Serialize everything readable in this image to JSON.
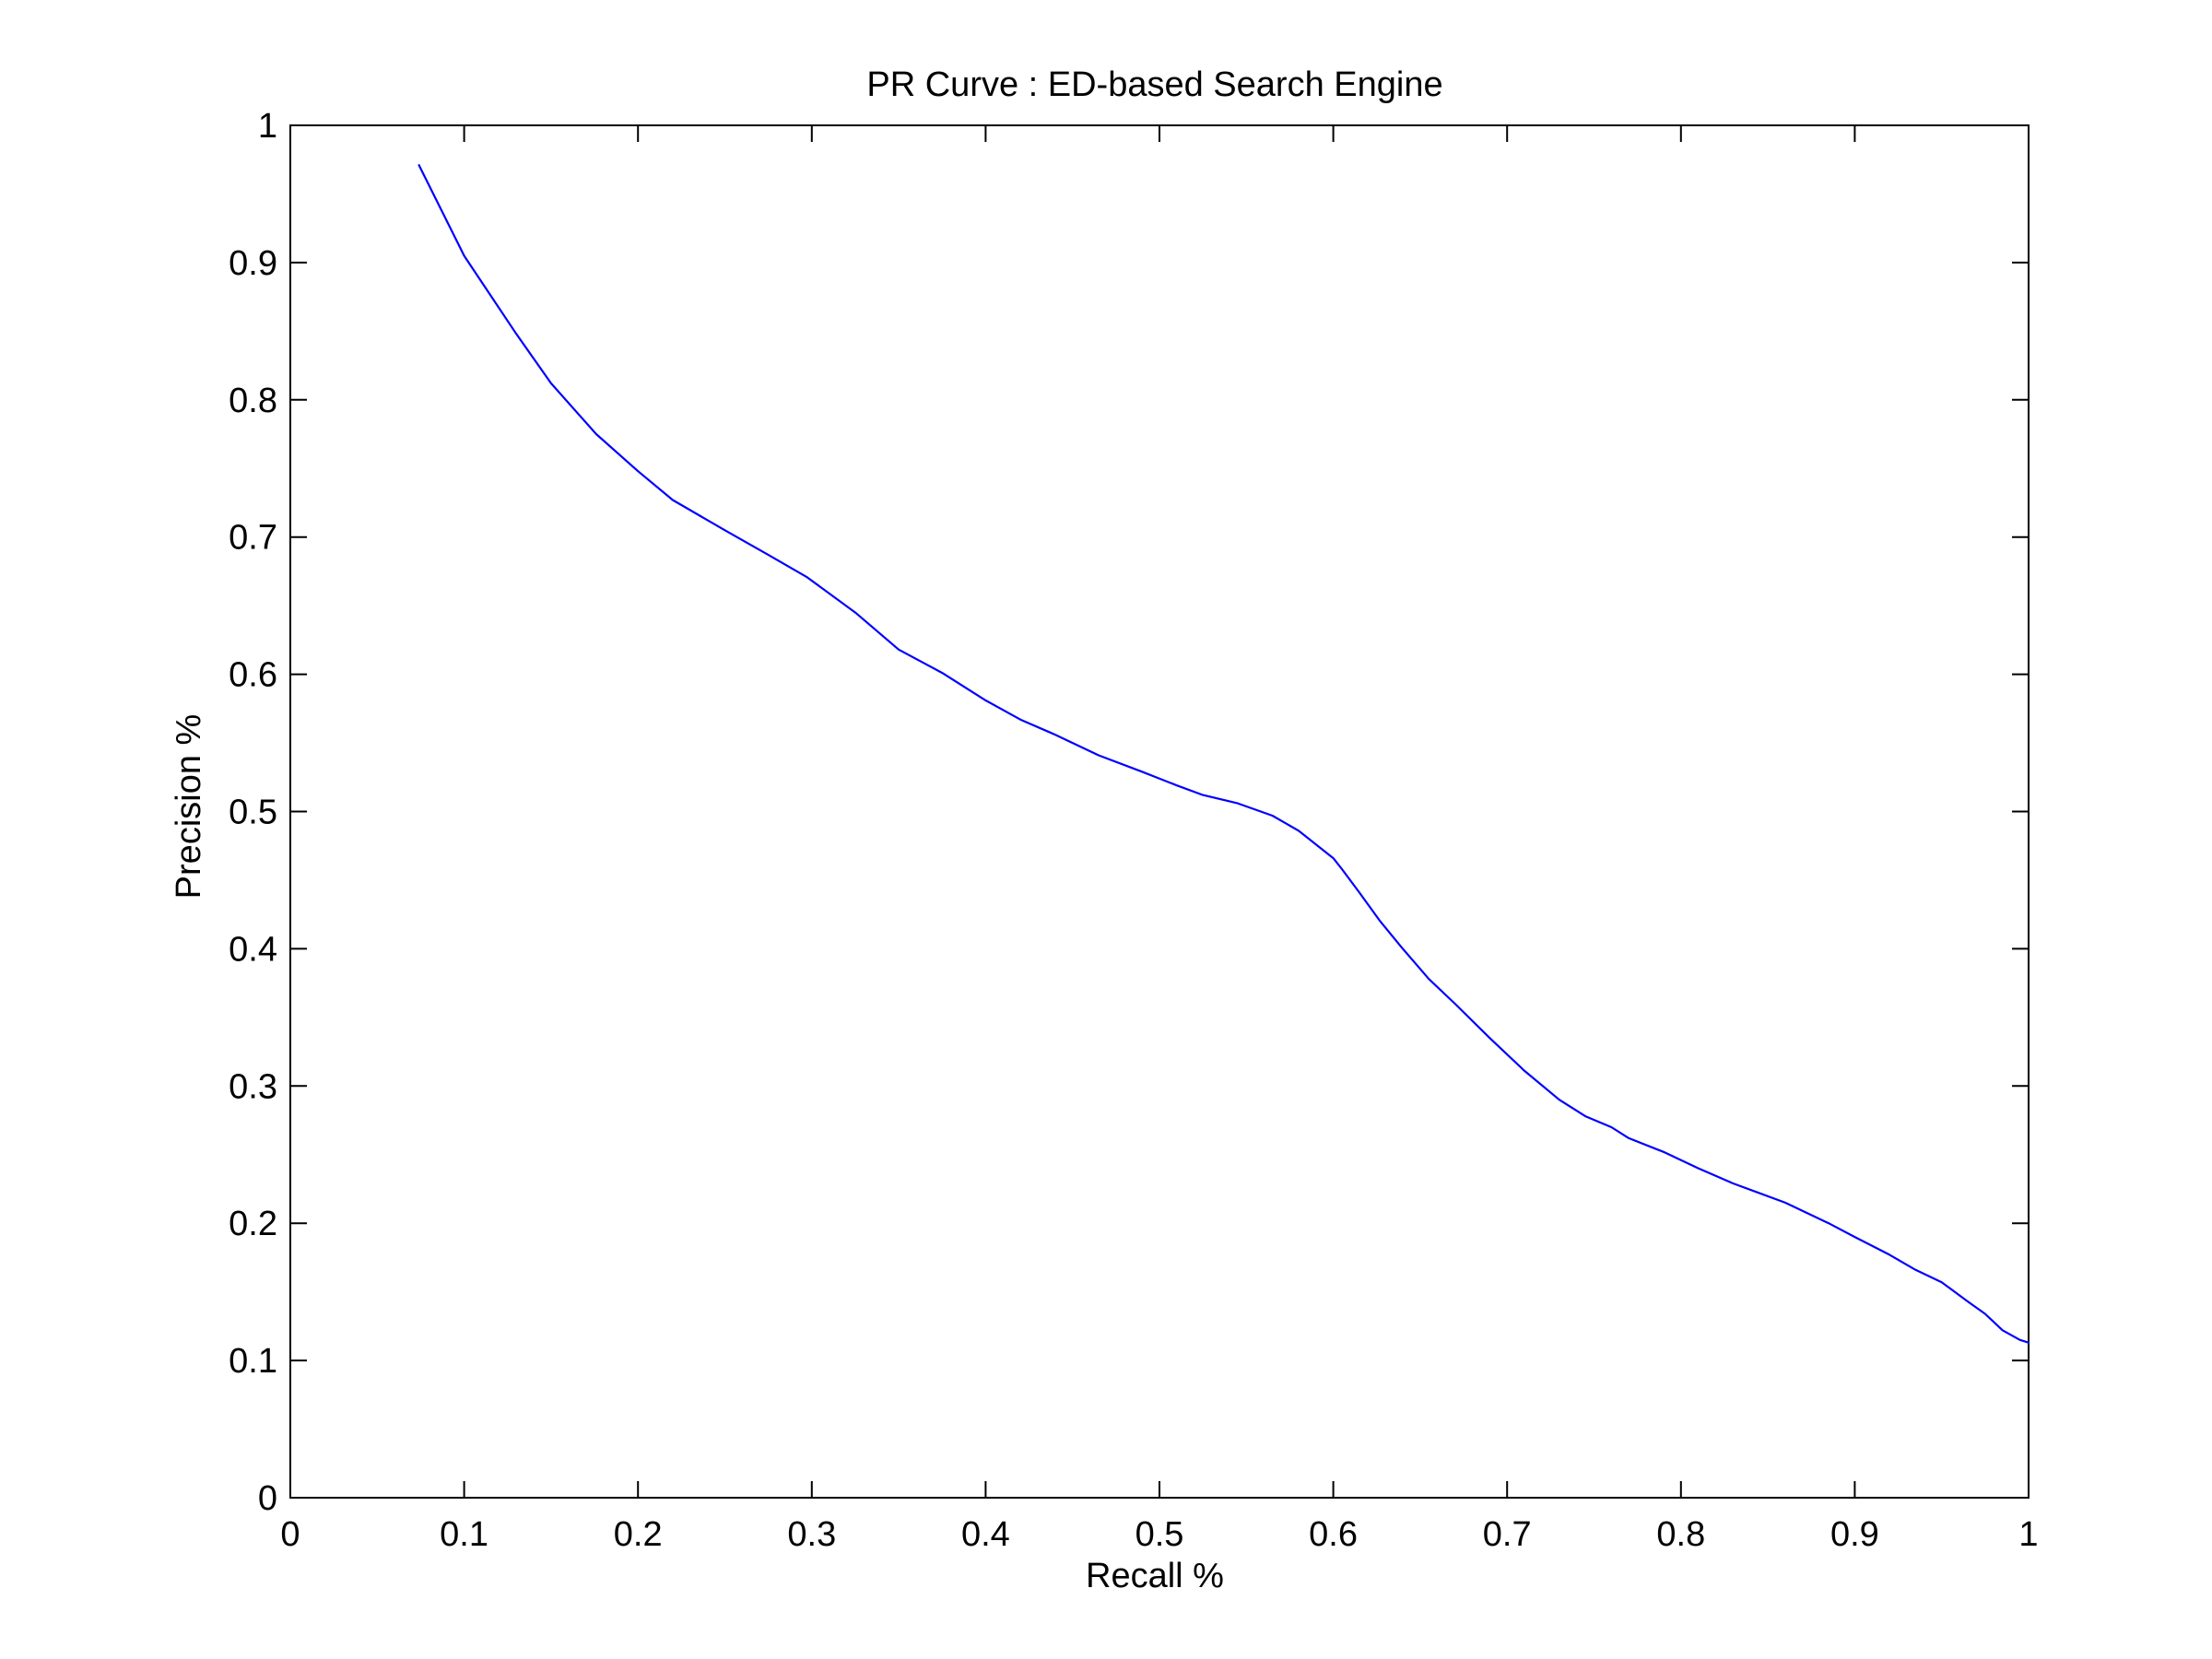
{
  "chart_data": {
    "type": "line",
    "title": "PR Curve : ED-based Search Engine",
    "xlabel": "Recall %",
    "ylabel": "Precision %",
    "xlim": [
      0,
      1
    ],
    "ylim": [
      0,
      1
    ],
    "xticks": [
      0,
      0.1,
      0.2,
      0.3,
      0.4,
      0.5,
      0.6,
      0.7,
      0.8,
      0.9,
      1
    ],
    "yticks": [
      0,
      0.1,
      0.2,
      0.3,
      0.4,
      0.5,
      0.6,
      0.7,
      0.8,
      0.9,
      1
    ],
    "xtick_labels": [
      "0",
      "0.1",
      "0.2",
      "0.3",
      "0.4",
      "0.5",
      "0.6",
      "0.7",
      "0.8",
      "0.9",
      "1"
    ],
    "ytick_labels": [
      "0",
      "0.1",
      "0.2",
      "0.3",
      "0.4",
      "0.5",
      "0.6",
      "0.7",
      "0.8",
      "0.9",
      "1"
    ],
    "grid": false,
    "legend": "none",
    "series": [
      {
        "color": "#0000ff",
        "x": [
          0.074,
          0.1,
          0.13,
          0.15,
          0.176,
          0.2,
          0.22,
          0.25,
          0.275,
          0.297,
          0.325,
          0.35,
          0.375,
          0.4,
          0.42,
          0.44,
          0.465,
          0.49,
          0.51,
          0.525,
          0.545,
          0.565,
          0.58,
          0.6,
          0.605,
          0.615,
          0.627,
          0.64,
          0.655,
          0.67,
          0.69,
          0.71,
          0.73,
          0.745,
          0.76,
          0.77,
          0.79,
          0.81,
          0.83,
          0.86,
          0.885,
          0.9,
          0.92,
          0.935,
          0.95,
          0.965,
          0.975,
          0.985,
          0.995,
          1.0
        ],
        "y": [
          0.971,
          0.905,
          0.848,
          0.812,
          0.775,
          0.748,
          0.727,
          0.705,
          0.687,
          0.671,
          0.645,
          0.618,
          0.601,
          0.581,
          0.567,
          0.556,
          0.541,
          0.529,
          0.519,
          0.512,
          0.506,
          0.497,
          0.486,
          0.466,
          0.458,
          0.441,
          0.42,
          0.4,
          0.378,
          0.36,
          0.335,
          0.311,
          0.29,
          0.278,
          0.27,
          0.262,
          0.252,
          0.24,
          0.229,
          0.215,
          0.2,
          0.19,
          0.177,
          0.166,
          0.157,
          0.143,
          0.134,
          0.122,
          0.115,
          0.113
        ]
      }
    ]
  }
}
